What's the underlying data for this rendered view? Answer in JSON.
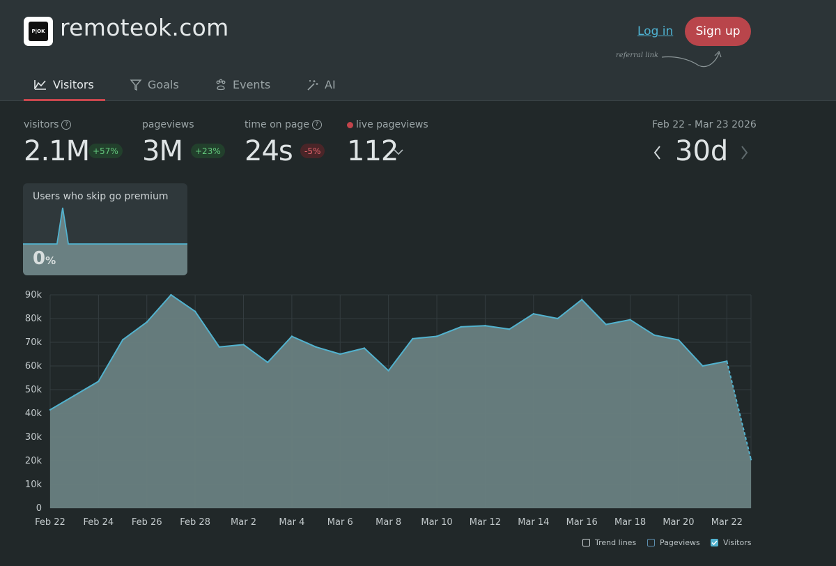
{
  "header": {
    "site_name": "remoteok.com",
    "logo_text": "OK",
    "login_label": "Log in",
    "signup_label": "Sign up",
    "referral_note": "referral link"
  },
  "tabs": [
    {
      "label": "Visitors",
      "icon": "chart-area-icon",
      "active": true
    },
    {
      "label": "Goals",
      "icon": "filter-icon",
      "active": false
    },
    {
      "label": "Events",
      "icon": "paw-icon",
      "active": false
    },
    {
      "label": "AI",
      "icon": "magic-wand-icon",
      "active": false
    }
  ],
  "stats": {
    "visitors": {
      "label": "visitors",
      "value": "2.1M",
      "change": "+57%"
    },
    "pageviews": {
      "label": "pageviews",
      "value": "3M",
      "change": "+23%"
    },
    "time_on_page": {
      "label": "time on page",
      "value": "24s",
      "change": "-5%"
    },
    "live_pageviews": {
      "label": "live pageviews",
      "value": "112"
    }
  },
  "date_range": "Feb 22 - Mar 23 2026",
  "period": "30d",
  "goal_card": {
    "title": "Users who skip go premium",
    "value": "0",
    "unit": "%"
  },
  "legend": {
    "trend_lines": "Trend lines",
    "pageviews": "Pageviews",
    "visitors": "Visitors"
  },
  "colors": {
    "accent": "#c9474d",
    "line": "#52b2ce",
    "area": "#6a8082",
    "positive": "#64c97d",
    "negative": "#e2636b"
  },
  "chart_data": {
    "type": "area",
    "title": "",
    "xlabel": "",
    "ylabel": "",
    "x": [
      "Feb 22",
      "Feb 23",
      "Feb 24",
      "Feb 25",
      "Feb 26",
      "Feb 27",
      "Feb 28",
      "Mar 1",
      "Mar 2",
      "Mar 3",
      "Mar 4",
      "Mar 5",
      "Mar 6",
      "Mar 7",
      "Mar 8",
      "Mar 9",
      "Mar 10",
      "Mar 11",
      "Mar 12",
      "Mar 13",
      "Mar 14",
      "Mar 15",
      "Mar 16",
      "Mar 17",
      "Mar 18",
      "Mar 19",
      "Mar 20",
      "Mar 21",
      "Mar 22",
      "Mar 23"
    ],
    "x_tick_labels": [
      "Feb 22",
      "Feb 24",
      "Feb 26",
      "Feb 28",
      "Mar 2",
      "Mar 4",
      "Mar 6",
      "Mar 8",
      "Mar 10",
      "Mar 12",
      "Mar 14",
      "Mar 16",
      "Mar 18",
      "Mar 20",
      "Mar 22"
    ],
    "y_tick_labels": [
      "0",
      "10k",
      "20k",
      "30k",
      "40k",
      "50k",
      "60k",
      "70k",
      "80k",
      "90k"
    ],
    "ylim": [
      0,
      90000
    ],
    "grid": true,
    "legend_position": "bottom-right",
    "series": [
      {
        "name": "Visitors",
        "values": [
          41500,
          47500,
          53500,
          71000,
          78500,
          90000,
          83000,
          68000,
          69000,
          61500,
          72500,
          68000,
          65000,
          67500,
          58000,
          71500,
          72500,
          76500,
          77000,
          75500,
          82000,
          80000,
          88000,
          77500,
          79500,
          73000,
          71000,
          60000,
          62000,
          20500
        ]
      }
    ],
    "goal_sparkline": [
      0,
      0,
      0,
      0,
      0,
      0,
      0,
      75,
      0,
      0,
      0,
      0,
      0,
      0,
      0,
      0,
      0,
      0,
      0,
      0,
      0,
      0,
      0,
      0,
      0,
      0,
      0,
      0,
      0,
      0
    ]
  }
}
